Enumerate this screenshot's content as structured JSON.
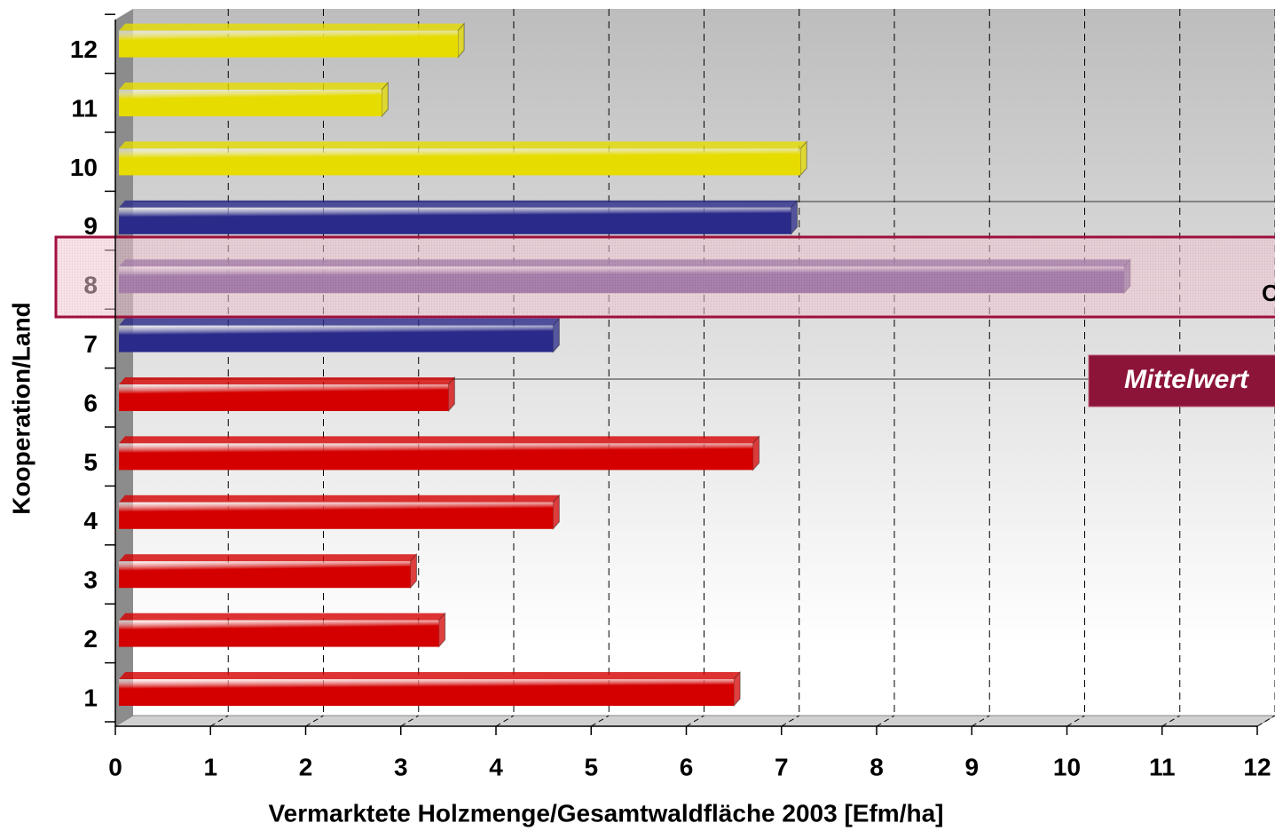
{
  "chart_data": {
    "type": "hbar",
    "categories": [
      "1",
      "2",
      "3",
      "4",
      "5",
      "6",
      "7",
      "8",
      "9",
      "10",
      "11",
      "12"
    ],
    "values": [
      6.5,
      3.4,
      3.1,
      4.6,
      6.7,
      3.5,
      4.6,
      10.6,
      7.1,
      7.2,
      2.8,
      3.6
    ],
    "colors": [
      "#d40000",
      "#d40000",
      "#d40000",
      "#d40000",
      "#d40000",
      "#d40000",
      "#2a2a8a",
      "#4b2a78",
      "#2a2a8a",
      "#e6dc00",
      "#e6dc00",
      "#e6dc00"
    ],
    "xlim": [
      0,
      12
    ],
    "xticks": [
      0,
      1,
      2,
      3,
      4,
      5,
      6,
      7,
      8,
      9,
      10,
      11,
      12
    ],
    "xlabel": "Vermarktete Holzmenge/Gesamtwaldfläche 2003 [Efm/ha]",
    "ylabel": "Kooperation/Land",
    "grid": true,
    "annotations": [
      "Mittelwert",
      "O"
    ]
  }
}
